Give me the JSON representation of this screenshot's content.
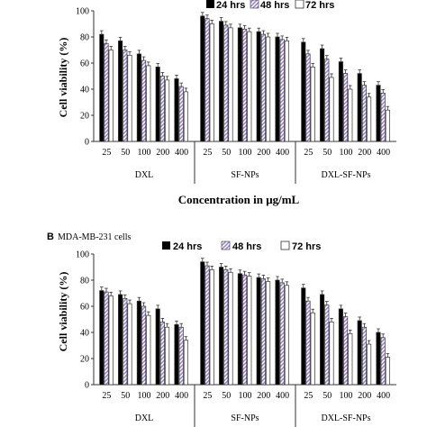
{
  "colors": {
    "s24": "#000000",
    "s48": "#b9a6d6",
    "s72": "#ffffff",
    "axis": "#333333"
  },
  "chart_data": [
    {
      "type": "bar",
      "panel_label": "",
      "cell_line": "",
      "ylabel": "Cell viability (%)",
      "xlabel": "Concentration in μg/mL",
      "ylim": [
        0,
        100
      ],
      "yticks": [
        0,
        20,
        40,
        60,
        80,
        100
      ],
      "groups": [
        "DXL",
        "SF-NPs",
        "DXL-SF-NPs"
      ],
      "concentrations": [
        "25",
        "50",
        "100",
        "200",
        "400"
      ],
      "legend_position": "top-right",
      "series": [
        {
          "name": "24 hrs",
          "values": [
            [
              82,
              77,
              67,
              57,
              48
            ],
            [
              96,
              92,
              87,
              84,
              80
            ],
            [
              76,
              71,
              61,
              52,
              43
            ]
          ]
        },
        {
          "name": "48 hrs",
          "values": [
            [
              75,
              70,
              62,
              50,
              42
            ],
            [
              94,
              89,
              86,
              82,
              78
            ],
            [
              67,
              63,
              52,
              43,
              37
            ]
          ]
        },
        {
          "name": "72 hrs",
          "values": [
            [
              70,
              66,
              58,
              47,
              38
            ],
            [
              90,
              87,
              84,
              80,
              77
            ],
            [
              57,
              49,
              40,
              34,
              24
            ]
          ]
        }
      ]
    },
    {
      "type": "bar",
      "panel_label": "B",
      "cell_line": "MDA-MB-231 cells",
      "ylabel": "Cell viability (%)",
      "xlabel": "",
      "ylim": [
        0,
        100
      ],
      "yticks": [
        0,
        20,
        40,
        60,
        80,
        100
      ],
      "groups": [
        "DXL",
        "SF-NPs",
        "DXL-SF-NPs"
      ],
      "concentrations": [
        "25",
        "50",
        "100",
        "200",
        "400"
      ],
      "legend_position": "top-right",
      "series": [
        {
          "name": "24 hrs",
          "values": [
            [
              72,
              69,
              64,
              58,
              46
            ],
            [
              94,
              90,
              85,
              82,
              80
            ],
            [
              74,
              69,
              58,
              49,
              40
            ]
          ]
        },
        {
          "name": "48 hrs",
          "values": [
            [
              71,
              66,
              60,
              48,
              44
            ],
            [
              91,
              88,
              84,
              81,
              78
            ],
            [
              64,
              61,
              52,
              44,
              36
            ]
          ]
        },
        {
          "name": "72 hrs",
          "values": [
            [
              68,
              62,
              53,
              44,
              34
            ],
            [
              88,
              86,
              83,
              79,
              76
            ],
            [
              55,
              48,
              39,
              31,
              21
            ]
          ]
        }
      ]
    }
  ]
}
